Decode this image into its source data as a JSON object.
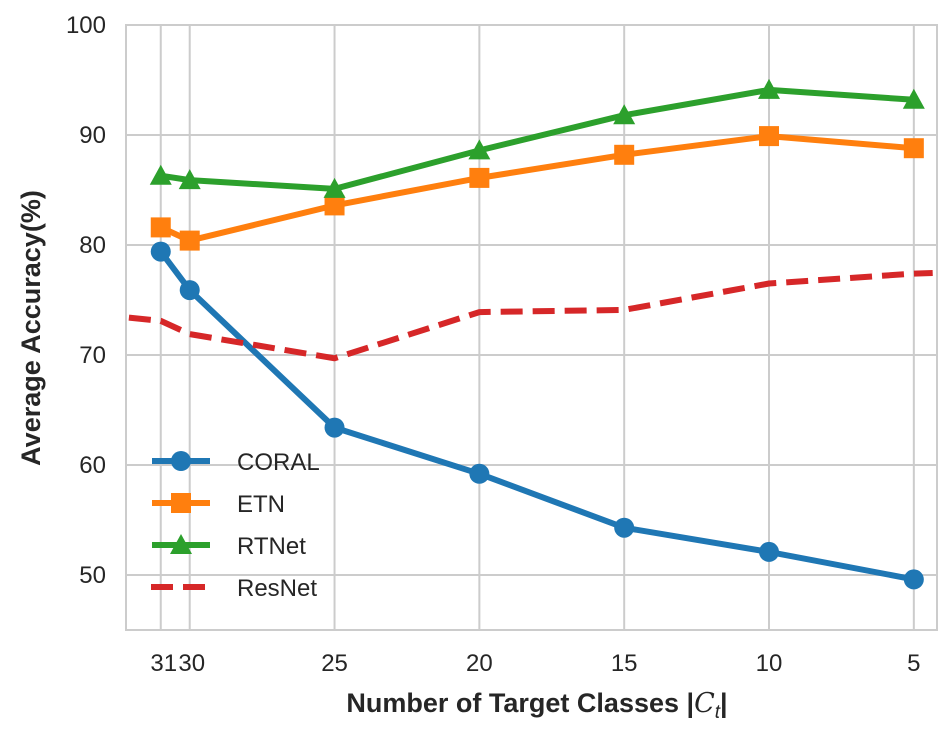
{
  "chart_data": {
    "type": "line",
    "title": "",
    "xlabel": "Number of Target Classes |",
    "xlabel_math": "C",
    "xlabel_sub": "t",
    "xlabel_end": "|",
    "ylabel": "Average Accuracy(%)",
    "x": [
      31,
      30,
      25,
      20,
      15,
      10,
      5
    ],
    "x_tick_labels": [
      "31",
      "30",
      "25",
      "20",
      "15",
      "10",
      "5"
    ],
    "xlim": [
      32.2,
      4.2
    ],
    "ylim": [
      45,
      100
    ],
    "y_ticks": [
      50,
      60,
      70,
      80,
      90,
      100
    ],
    "grid": true,
    "legend_location": "lower-left",
    "series": [
      {
        "name": "CORAL",
        "color": "#1f77b4",
        "marker": "circle",
        "linestyle": "solid",
        "values": [
          79.4,
          75.9,
          63.4,
          59.2,
          54.3,
          52.1,
          49.6
        ]
      },
      {
        "name": "ETN",
        "color": "#ff7f0e",
        "marker": "square",
        "linestyle": "solid",
        "values": [
          81.6,
          80.4,
          83.6,
          86.1,
          88.2,
          89.9,
          88.8
        ]
      },
      {
        "name": "RTNet",
        "color": "#2ca02c",
        "marker": "triangle",
        "linestyle": "solid",
        "values": [
          86.3,
          85.9,
          85.1,
          88.6,
          91.8,
          94.1,
          93.2
        ]
      },
      {
        "name": "ResNet",
        "color": "#d62728",
        "marker": "none",
        "linestyle": "dashed",
        "values": [
          73.1,
          71.9,
          69.7,
          73.9,
          74.1,
          76.5,
          77.4
        ]
      }
    ]
  }
}
